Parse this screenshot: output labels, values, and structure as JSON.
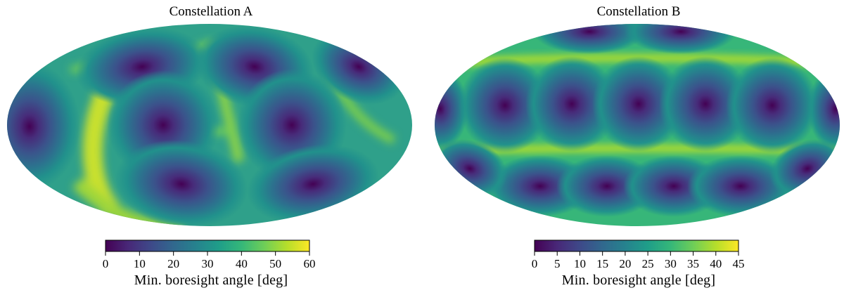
{
  "colors": {
    "colormap": "viridis",
    "viridis_stops": [
      "#440154",
      "#482878",
      "#3e4989",
      "#31688e",
      "#26828e",
      "#1f9e89",
      "#35b779",
      "#6ece58",
      "#b5de2b",
      "#fde725"
    ]
  },
  "chart_data": [
    {
      "type": "heatmap",
      "projection": "mollweide",
      "title": "Constellation A",
      "colorbar": {
        "label": "Min. boresight angle [deg]",
        "range": [
          0,
          60
        ],
        "ticks": [
          "0",
          "10",
          "20",
          "30",
          "40",
          "50",
          "60"
        ],
        "orientation": "horizontal"
      },
      "grid": false
    },
    {
      "type": "heatmap",
      "projection": "mollweide",
      "title": "Constellation B",
      "colorbar": {
        "label": "Min. boresight angle [deg]",
        "range": [
          0,
          45
        ],
        "ticks": [
          "0",
          "5",
          "10",
          "15",
          "20",
          "25",
          "30",
          "35",
          "40",
          "45"
        ],
        "orientation": "horizontal"
      },
      "grid": false
    }
  ]
}
